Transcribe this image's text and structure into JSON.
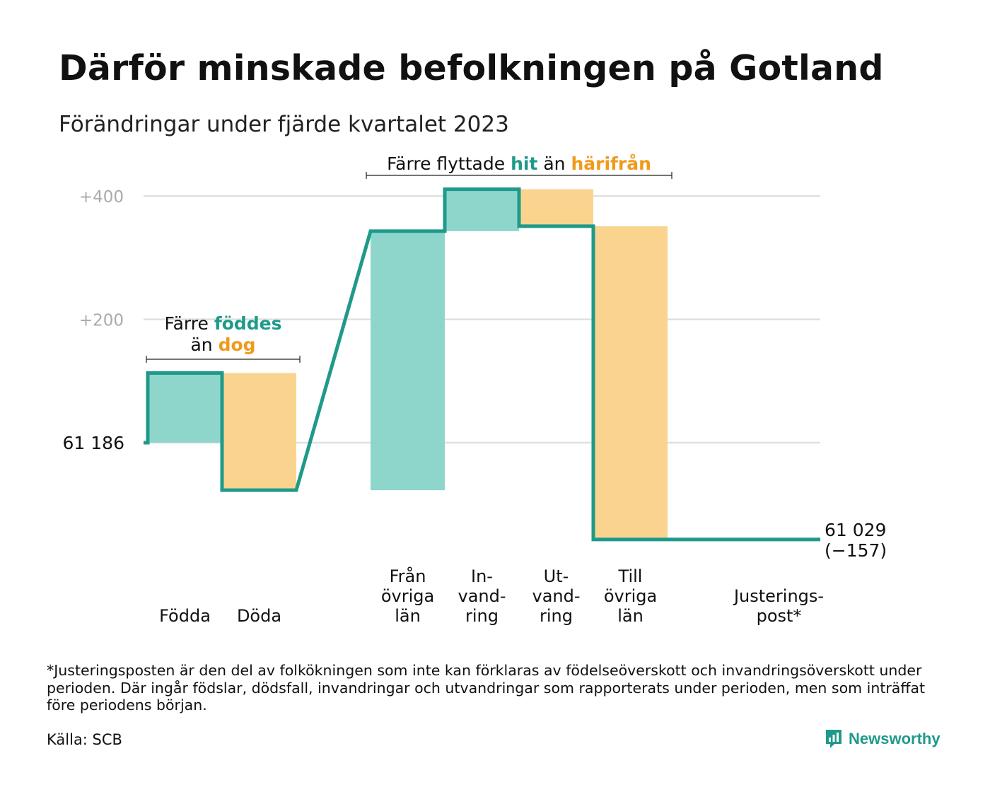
{
  "title": "Därför minskade befolkningen på Gotland",
  "subtitle": "Förändringar under fjärde kvartalet 2023",
  "footnote": "*Justeringsposten är den del av folkökningen som inte kan förklaras av födelseöverskott och invandringsöverskott under perioden. Där ingår födslar, dödsfall, invandringar och utvandringar som rapporterats under perioden, men som inträffat före periodens början.",
  "source": "Källa: SCB",
  "brand": "Newsworthy",
  "colors": {
    "increase": "#8ed6cc",
    "decrease": "#fad48e",
    "line": "#1f9a8a",
    "teal_text": "#1f9a8a",
    "orange_text": "#f09a1a",
    "grid": "#e0e0e0",
    "tick": "#aaaaaa"
  },
  "chart_data": {
    "type": "waterfall",
    "start_value": 61186,
    "end_value": 61029,
    "start_label": "61 186",
    "end_label": "61 029",
    "end_change_label": "(−157)",
    "y_ticks": [
      {
        "value": 200,
        "label": "+200"
      },
      {
        "value": 400,
        "label": "+400"
      }
    ],
    "ylim": [
      -190,
      440
    ],
    "grid": true,
    "steps": [
      {
        "category": "Födda",
        "label_lines": [
          "Födda"
        ],
        "value": 113,
        "kind": "increase",
        "slot": 0
      },
      {
        "category": "Döda",
        "label_lines": [
          "Döda"
        ],
        "value": -190,
        "kind": "decrease",
        "slot": 1
      },
      {
        "category": "Från övriga län",
        "label_lines": [
          "Från",
          "övriga",
          "län"
        ],
        "value": 420,
        "kind": "increase",
        "slot": 3
      },
      {
        "category": "Invandring",
        "label_lines": [
          "In-",
          "vand-",
          "ring"
        ],
        "value": 68,
        "kind": "increase",
        "slot": 4
      },
      {
        "category": "Utvandring",
        "label_lines": [
          "Ut-",
          "vand-",
          "ring"
        ],
        "value": -60,
        "kind": "decrease",
        "slot": 5
      },
      {
        "category": "Till övriga län",
        "label_lines": [
          "Till",
          "övriga",
          "län"
        ],
        "value": -508,
        "kind": "decrease",
        "slot": 6
      },
      {
        "category": "Justeringspost*",
        "label_lines": [
          "Justerings-",
          "post*"
        ],
        "value": 0,
        "kind": "adjustment",
        "slot": 8
      }
    ],
    "annotations": [
      {
        "name": "births-deaths",
        "parts": [
          [
            {
              "text": "Färre ",
              "color": "dark"
            },
            {
              "text": "föddes",
              "color": "teal"
            }
          ],
          [
            {
              "text": "än ",
              "color": "dark"
            },
            {
              "text": "dog",
              "color": "orange"
            }
          ]
        ],
        "from_slot": 0,
        "to_slot": 1
      },
      {
        "name": "migration",
        "parts": [
          [
            {
              "text": "Färre flyttade ",
              "color": "dark"
            },
            {
              "text": "hit",
              "color": "teal"
            },
            {
              "text": "  än ",
              "color": "dark"
            },
            {
              "text": "härifrån",
              "color": "orange"
            }
          ]
        ],
        "from_slot": 3,
        "to_slot": 6
      }
    ]
  }
}
